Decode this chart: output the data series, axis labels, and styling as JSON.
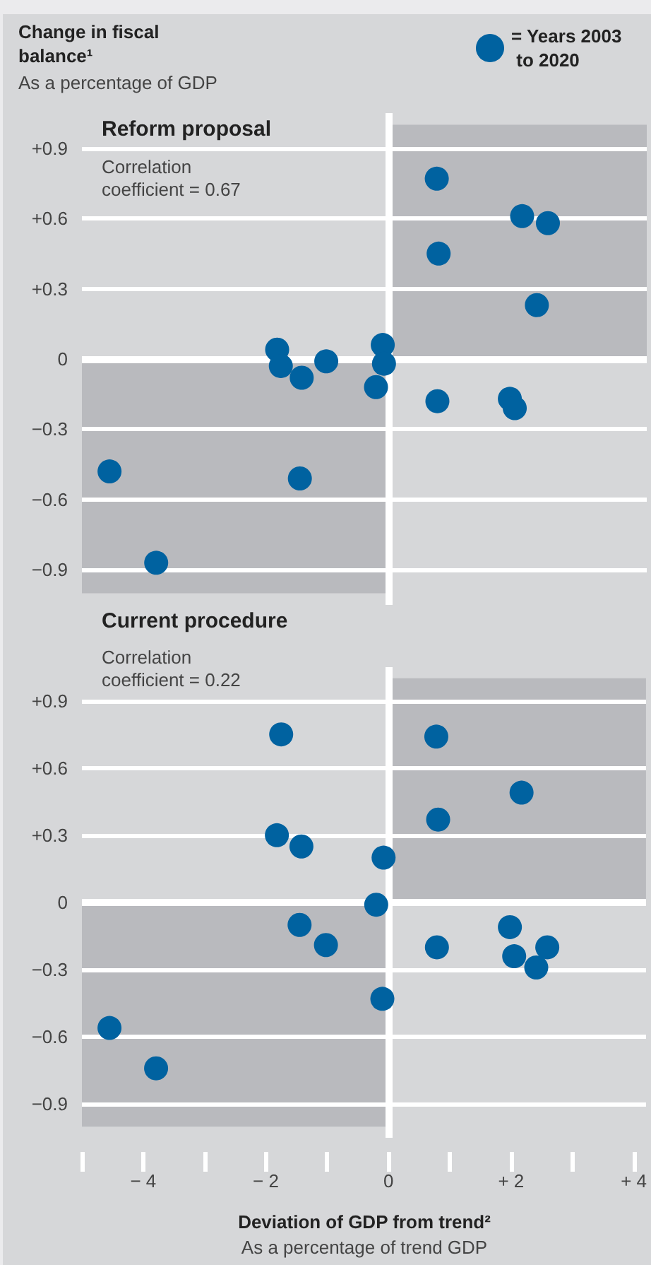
{
  "chart_data": [
    {
      "type": "scatter",
      "title": "Reform proposal",
      "ylabel": "Change in fiscal balance¹",
      "annotations": [
        "Correlation coefficient = 0.67",
        "As a percentage of GDP"
      ],
      "x": [
        0.78,
        2.17,
        2.59,
        0.81,
        2.41,
        -1.82,
        -1.76,
        -1.42,
        -1.02,
        -0.1,
        -0.08,
        -0.21,
        0.79,
        1.97,
        2.05,
        -4.55,
        -1.45,
        -3.79
      ],
      "series": [
        {
          "name": "= Years 2003 to 2020",
          "color": "#0062a0",
          "values": [
            0.77,
            0.61,
            0.58,
            0.45,
            0.23,
            0.04,
            -0.03,
            -0.08,
            -0.01,
            0.06,
            -0.02,
            -0.12,
            -0.18,
            -0.17,
            -0.21,
            -0.48,
            -0.51,
            -0.87
          ]
        }
      ],
      "xlim": [
        -5,
        4.2
      ],
      "ylim": [
        -1.05,
        1.05
      ],
      "yticks": [
        {
          "value": -0.9,
          "label": "−0.9"
        },
        {
          "value": -0.6,
          "label": "−0.6"
        },
        {
          "value": -0.3,
          "label": "−0.3"
        },
        0,
        {
          "value": 0.3,
          "label": "+0.3"
        },
        {
          "value": 0.6,
          "label": "+0.6"
        },
        {
          "value": 0.9,
          "label": "+0.9"
        }
      ],
      "tick_labels": "y",
      "grid": "y",
      "legend": "top right",
      "marker": "circle",
      "ref_lines": [
        {
          "axis": "x",
          "value": 0,
          "color": "#ffffff"
        }
      ],
      "bands": [
        {
          "axis": "y",
          "from": 0,
          "to": 1,
          "color": "#b9babe"
        },
        {
          "axis": "y",
          "from": -1,
          "to": 0,
          "color": "#b9babe"
        }
      ]
    },
    {
      "type": "scatter",
      "title": "Current procedure",
      "xlabel": "Deviation of GDP from trend²",
      "annotations": [
        "Correlation coefficient = 0.22",
        "As a percentage of trend GDP"
      ],
      "x": [
        -1.75,
        0.78,
        2.17,
        0.81,
        -1.82,
        -1.42,
        -0.08,
        -0.2,
        -1.45,
        -1.02,
        0.79,
        1.98,
        2.05,
        2.59,
        2.41,
        -0.1,
        -4.55,
        -3.79
      ],
      "series": [
        {
          "color": "#0062a0",
          "values": [
            0.75,
            0.74,
            0.49,
            0.37,
            0.3,
            0.25,
            0.2,
            -0.01,
            -0.1,
            -0.19,
            -0.2,
            -0.11,
            -0.24,
            -0.2,
            -0.29,
            -0.43,
            -0.56,
            -0.74
          ]
        }
      ],
      "xlim": [
        -5,
        4.2
      ],
      "ylim": [
        -1.05,
        1.05
      ],
      "xticks": [
        {
          "value": -5,
          "label": null
        },
        {
          "value": -4,
          "label": "− 4"
        },
        {
          "value": -3,
          "label": null
        },
        {
          "value": -2,
          "label": "− 2"
        },
        {
          "value": -1,
          "label": null
        },
        0,
        {
          "value": 1,
          "label": null
        },
        {
          "value": 2,
          "label": "+ 2"
        },
        {
          "value": 3,
          "label": null
        },
        {
          "value": 4,
          "label": "+ 4"
        }
      ],
      "yticks": [
        {
          "value": -0.9,
          "label": "−0.9"
        },
        {
          "value": -0.6,
          "label": "−0.6"
        },
        {
          "value": -0.3,
          "label": "−0.3"
        },
        0,
        {
          "value": 0.3,
          "label": "+0.3"
        },
        {
          "value": 0.6,
          "label": "+0.6"
        },
        {
          "value": 0.9,
          "label": "+0.9"
        }
      ],
      "grid": "y",
      "marker": "circle",
      "ref_lines": [
        {
          "axis": "x",
          "value": 0,
          "color": "#ffffff"
        }
      ],
      "bands": [
        {
          "axis": "y",
          "from": 0,
          "to": 1,
          "color": "#b9babe"
        },
        {
          "axis": "y",
          "from": -1,
          "to": 0,
          "color": "#b9babe"
        }
      ]
    }
  ]
}
